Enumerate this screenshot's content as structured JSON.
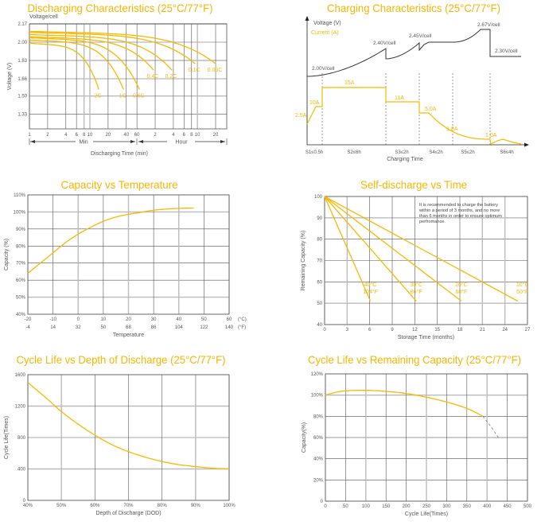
{
  "colors": {
    "accent": "#f9b800",
    "title": "#f7b500",
    "grid_dark": "#555555",
    "grid_light": "#bbbbbb",
    "text": "#555555",
    "voltage_line": "#333333"
  },
  "chart_data": [
    {
      "type": "line",
      "title": "Discharging Characteristics (25°C/77°F)",
      "unit_label": "Voltage/cell",
      "ylabel": "Voltage (V)",
      "xlabel": "Discharging Time (min)",
      "x_scale": "log",
      "y_ticks": [
        "1.33",
        "1.50",
        "1.66",
        "1.83",
        "2.00",
        "2.17"
      ],
      "y_tick_values": [
        1.33,
        1.5,
        1.66,
        1.83,
        2.0,
        2.17
      ],
      "x_tick_values_min": [
        1,
        2,
        4,
        6,
        8,
        10,
        20,
        40,
        60,
        120,
        240,
        360,
        480,
        600,
        1200
      ],
      "x_tick_labels": [
        "1",
        "2",
        "4",
        "6",
        "8",
        "10",
        "20",
        "40",
        "60",
        "2",
        "4",
        "6",
        "8",
        "10",
        "20"
      ],
      "range_labels": {
        "min": "Min",
        "hour": "Hour"
      },
      "grid": true,
      "series": [
        {
          "name": "2C",
          "start_voltage": 1.99,
          "end_time_min": 14,
          "end_voltage": 1.56
        },
        {
          "name": "1C",
          "start_voltage": 2.02,
          "end_time_min": 36,
          "end_voltage": 1.56
        },
        {
          "name": "0.6C",
          "start_voltage": 2.04,
          "end_time_min": 66,
          "end_voltage": 1.56
        },
        {
          "name": "0.4C",
          "start_voltage": 2.05,
          "end_time_min": 113,
          "end_voltage": 1.74
        },
        {
          "name": "0.2C",
          "start_voltage": 2.07,
          "end_time_min": 227,
          "end_voltage": 1.74
        },
        {
          "name": "0.1C",
          "start_voltage": 2.09,
          "end_time_min": 550,
          "end_voltage": 1.8
        },
        {
          "name": "0.05C",
          "start_voltage": 2.1,
          "end_time_min": 1200,
          "end_voltage": 1.8
        }
      ]
    },
    {
      "type": "line",
      "title": "Charging Characteristics (25°C/77°F)",
      "xlabel": "Charging Time",
      "legend": {
        "voltage": "Voltage (V)",
        "current": "Current (A)"
      },
      "stages": [
        "S1≤0.5h",
        "S2≤6h",
        "S3≤2h",
        "S4≤2h",
        "S5≤2h",
        "S6≤4h"
      ],
      "voltage_labels": [
        "2.00V/cell",
        "2.40V/cell",
        "2.45V/cell",
        "2.67V/cell",
        "2.30V/cell"
      ],
      "current_labels": [
        "2.5A",
        "10A",
        "15A",
        "11A",
        "5.0A",
        "1.8A",
        "1.0A"
      ]
    },
    {
      "type": "line",
      "title": "Capacity vs Temperature",
      "ylabel": "Capacity (%)",
      "xlabel": "Temperature",
      "xlim": [
        -20,
        60
      ],
      "ylim": [
        40,
        110
      ],
      "x_ticks": [
        -20,
        -10,
        0,
        10,
        20,
        30,
        40,
        50,
        60
      ],
      "x_tick_labels": [
        "-20",
        "-10",
        "0",
        "10",
        "20",
        "30",
        "40",
        "50",
        "60"
      ],
      "x_tick_labels_f": [
        "-4",
        "14",
        "32",
        "50",
        "68",
        "86",
        "104",
        "122",
        "140"
      ],
      "x_unit_c": "(°C)",
      "x_unit_f": "(°F)",
      "y_ticks": [
        40,
        50,
        60,
        70,
        80,
        90,
        100,
        110
      ],
      "y_tick_labels": [
        "40%",
        "50%",
        "60%",
        "70%",
        "80%",
        "90%",
        "100%",
        "110%"
      ],
      "grid": true,
      "series": [
        {
          "x": [
            -20,
            -15,
            -10,
            -5,
            0,
            5,
            10,
            15,
            20,
            25,
            30,
            35,
            40,
            46
          ],
          "y": [
            64,
            70,
            76,
            82,
            87,
            91,
            94.5,
            97,
            98.6,
            99.8,
            101,
            101.7,
            102.1,
            102.3
          ]
        }
      ]
    },
    {
      "type": "line",
      "title": "Self-discharge vs Time",
      "ylabel": "Remaining Capacity (%)",
      "xlabel": "Storage Time (months)",
      "xlim": [
        0,
        27
      ],
      "ylim": [
        40,
        100
      ],
      "x_ticks": [
        0,
        3,
        6,
        9,
        12,
        15,
        18,
        21,
        24,
        27
      ],
      "x_tick_labels": [
        "0",
        "3",
        "6",
        "9",
        "12",
        "15",
        "18",
        "21",
        "24",
        "27"
      ],
      "y_ticks": [
        40,
        50,
        60,
        70,
        80,
        90,
        100
      ],
      "y_tick_labels": [
        "40",
        "50",
        "60",
        "70",
        "80",
        "90",
        "100"
      ],
      "grid": true,
      "note": [
        "It is recommended to charge the battery",
        "within a period of 3 months, and no more",
        "than 6 months in order to ensure optimum",
        "perfromance."
      ],
      "series": [
        {
          "name_c": "40°C",
          "name_f": "104°F",
          "x": [
            0,
            6.1
          ],
          "y": [
            100,
            51
          ]
        },
        {
          "name_c": "30°C",
          "name_f": "86°F",
          "x": [
            0,
            12.2
          ],
          "y": [
            100,
            51
          ]
        },
        {
          "name_c": "20°C",
          "name_f": "68°F",
          "x": [
            0,
            18.2
          ],
          "y": [
            100,
            51
          ]
        },
        {
          "name_c": "10°C",
          "name_f": "50°F",
          "x": [
            0,
            25.7
          ],
          "y": [
            100,
            51
          ]
        }
      ]
    },
    {
      "type": "line",
      "title": "Cycle Life vs Depth of Discharge (25°C/77°F)",
      "ylabel": "Cycle Life(Times)",
      "xlabel": "Depth of Discharge (DOD)",
      "xlim": [
        40,
        100
      ],
      "ylim": [
        0,
        1600
      ],
      "x_ticks": [
        40,
        50,
        60,
        70,
        80,
        90,
        100
      ],
      "x_tick_labels": [
        "40%",
        "50%",
        "60%",
        "70%",
        "80%",
        "90%",
        "100%"
      ],
      "y_ticks": [
        0,
        400,
        800,
        1200,
        1600
      ],
      "y_tick_labels": [
        "0",
        "400",
        "800",
        "1200",
        "1600"
      ],
      "grid": true,
      "series": [
        {
          "x": [
            40,
            45,
            50,
            55,
            60,
            65,
            70,
            75,
            80,
            85,
            90,
            95,
            100
          ],
          "y": [
            1500,
            1320,
            1130,
            970,
            830,
            710,
            620,
            550,
            495,
            455,
            430,
            410,
            400
          ]
        }
      ]
    },
    {
      "type": "line",
      "title": "Cycle Life vs Remaining Capacity (25°C/77°F)",
      "ylabel": "Capacity(%)",
      "xlabel": "Cycle Life(Times)",
      "xlim": [
        0,
        500
      ],
      "ylim": [
        0,
        120
      ],
      "x_ticks": [
        0,
        50,
        100,
        150,
        200,
        250,
        300,
        350,
        400,
        450,
        500
      ],
      "x_tick_labels": [
        "0",
        "50",
        "100",
        "150",
        "200",
        "250",
        "300",
        "350",
        "400",
        "450",
        "500"
      ],
      "y_ticks": [
        0,
        20,
        40,
        60,
        80,
        100,
        120
      ],
      "y_tick_labels": [
        "0",
        "20%",
        "40%",
        "60%",
        "80%",
        "100%",
        "120%"
      ],
      "grid": true,
      "series": [
        {
          "x": [
            0,
            25,
            50,
            100,
            150,
            200,
            250,
            300,
            350,
            390
          ],
          "y": [
            100,
            102.5,
            104,
            104.5,
            103.5,
            101.5,
            98,
            93.5,
            87.5,
            80
          ]
        },
        {
          "style": "dashed",
          "x": [
            390,
            410,
            428
          ],
          "y": [
            80,
            70,
            60
          ]
        }
      ]
    }
  ]
}
